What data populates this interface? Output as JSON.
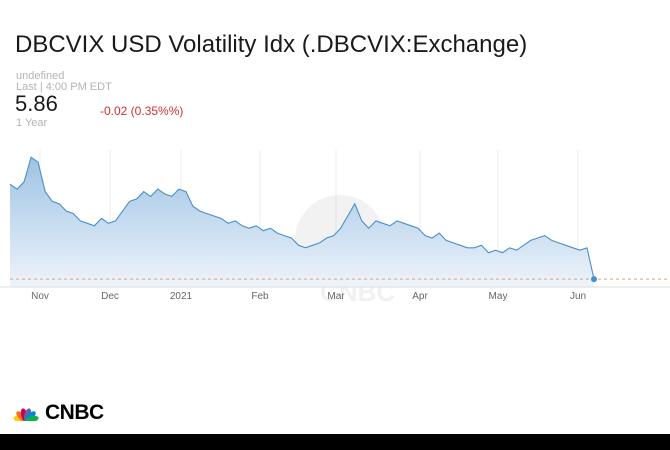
{
  "header": {
    "title": "DBCVIX USD Volatility Idx (.DBCVIX:Exchange)",
    "exchange": "undefined",
    "last_label": "Last | 4:00 PM EDT",
    "price": "5.86",
    "change": "-0.02 (0.35%%)",
    "period": "1 Year"
  },
  "colors": {
    "line": "#4a90c8",
    "fill_top": "#9ec3e3",
    "fill_bottom": "#eef4fb",
    "change_negative": "#d32f2f",
    "dashed_line": "#e8a070"
  },
  "brand": {
    "name": "CNBC"
  },
  "chart_data": {
    "type": "area",
    "title": "DBCVIX USD Volatility Idx (.DBCVIX:Exchange)",
    "x_tick_labels": [
      "Nov",
      "Dec",
      "2021",
      "Feb",
      "Mar",
      "Apr",
      "May",
      "Jun"
    ],
    "xlabel": "",
    "ylabel": "",
    "grid": "vertical",
    "last_value": 5.86,
    "series": [
      {
        "values": [
          7.8,
          7.7,
          7.85,
          8.35,
          8.25,
          7.65,
          7.45,
          7.4,
          7.25,
          7.2,
          7.05,
          7.0,
          6.95,
          7.1,
          7.0,
          7.05,
          7.25,
          7.45,
          7.5,
          7.65,
          7.55,
          7.7,
          7.6,
          7.55,
          7.7,
          7.65,
          7.35,
          7.25,
          7.2,
          7.15,
          7.1,
          7.0,
          7.05,
          6.95,
          6.9,
          6.95,
          6.85,
          6.9,
          6.8,
          6.75,
          6.7,
          6.55,
          6.5,
          6.55,
          6.6,
          6.7,
          6.75,
          6.9,
          7.15,
          7.4,
          7.05,
          6.9,
          7.05,
          7.0,
          6.95,
          7.05,
          7.0,
          6.95,
          6.9,
          6.75,
          6.7,
          6.8,
          6.65,
          6.6,
          6.55,
          6.5,
          6.5,
          6.55,
          6.4,
          6.45,
          6.4,
          6.5,
          6.45,
          6.55,
          6.65,
          6.7,
          6.75,
          6.65,
          6.6,
          6.55,
          6.5,
          6.45,
          6.5,
          5.86
        ]
      }
    ]
  }
}
